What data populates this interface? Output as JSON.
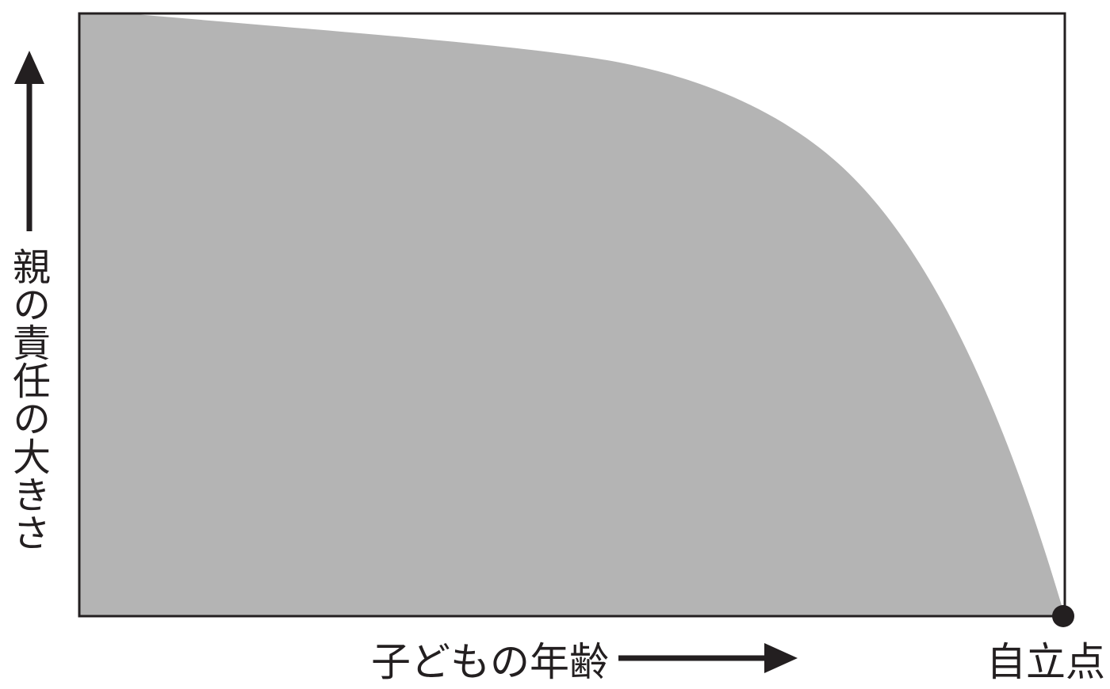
{
  "diagram": {
    "y_axis_label": "親の責任の大きさ",
    "x_axis_label": "子どもの年齢",
    "end_point_label": "自立点",
    "colors": {
      "fill": "#b4b4b4",
      "ink": "#231f20",
      "background": "#ffffff"
    },
    "curve_shape": "concave-decreasing"
  }
}
